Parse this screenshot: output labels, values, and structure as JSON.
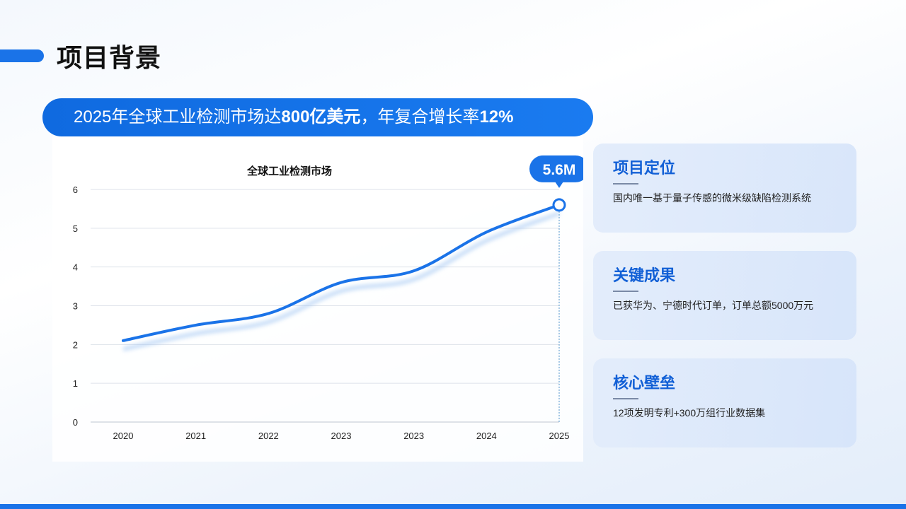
{
  "page": {
    "title": "项目背景",
    "headline_parts": [
      "2025年全球工业检测市场达",
      "800亿美元",
      "，年复合增长率",
      "12%"
    ],
    "accent_color": "#1a73e8"
  },
  "cards": [
    {
      "title": "项目定位",
      "text": "国内唯一基于量子传感的微米级缺陷检测系统"
    },
    {
      "title": "关键成果",
      "text": "已获华为、宁德时代订单，订单总额5000万元"
    },
    {
      "title": "核心壁垒",
      "text": "12项发明专利+300万组行业数据集"
    }
  ],
  "chart_data": {
    "type": "line",
    "title": "全球工业检测市场",
    "categories": [
      "2020",
      "2021",
      "2022",
      "2023",
      "2023",
      "2024",
      "2025"
    ],
    "series": [
      {
        "values": [
          2.1,
          2.5,
          2.8,
          3.6,
          3.9,
          4.9,
          5.6
        ],
        "color": "#1a73e8"
      }
    ],
    "ylim": [
      0,
      6
    ],
    "yticks": [
      0,
      1,
      2,
      3,
      4,
      5,
      6
    ],
    "grid": true,
    "callout": {
      "label": "5.6M",
      "point_index": 6
    }
  }
}
